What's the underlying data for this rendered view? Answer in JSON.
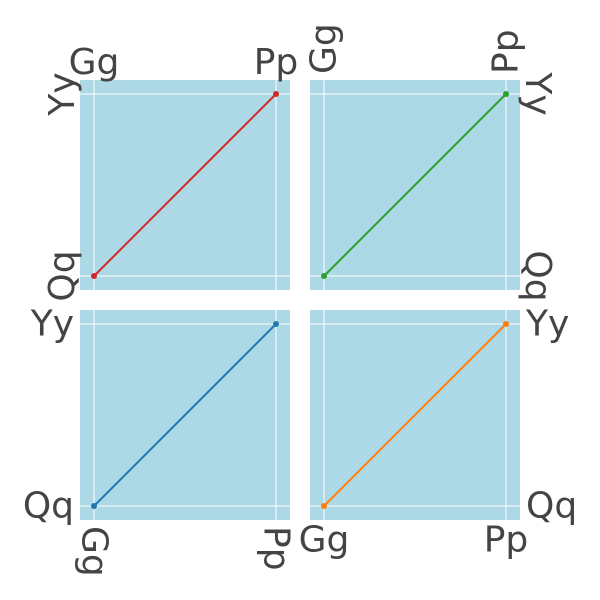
{
  "chart_data": [
    {
      "type": "line",
      "x_categories": [
        "Gg",
        "Pp"
      ],
      "y_categories": [
        "Qq",
        "Yy"
      ],
      "x": [
        "Gg",
        "Pp"
      ],
      "y": [
        "Qq",
        "Yy"
      ],
      "color": "#d62728",
      "xaxis_side": "top",
      "yaxis_side": "left",
      "x_tick_angle": 0,
      "y_tick_angle": -90,
      "grid": true
    },
    {
      "type": "line",
      "x_categories": [
        "Gg",
        "Pp"
      ],
      "y_categories": [
        "Qq",
        "Yy"
      ],
      "x": [
        "Gg",
        "Pp"
      ],
      "y": [
        "Qq",
        "Yy"
      ],
      "color": "#2ca02c",
      "xaxis_side": "top",
      "yaxis_side": "right",
      "x_tick_angle": -90,
      "y_tick_angle": 90,
      "grid": true
    },
    {
      "type": "line",
      "x_categories": [
        "Gg",
        "Pp"
      ],
      "y_categories": [
        "Qq",
        "Yy"
      ],
      "x": [
        "Gg",
        "Pp"
      ],
      "y": [
        "Qq",
        "Yy"
      ],
      "color": "#1f77b4",
      "xaxis_side": "bottom",
      "yaxis_side": "left",
      "x_tick_angle": 90,
      "y_tick_angle": 0,
      "grid": true
    },
    {
      "type": "line",
      "x_categories": [
        "Gg",
        "Pp"
      ],
      "y_categories": [
        "Qq",
        "Yy"
      ],
      "x": [
        "Gg",
        "Pp"
      ],
      "y": [
        "Qq",
        "Yy"
      ],
      "color": "#ff7f0e",
      "xaxis_side": "bottom",
      "yaxis_side": "right",
      "x_tick_angle": 0,
      "y_tick_angle": 0,
      "grid": true
    }
  ],
  "colors": {
    "plot_background": "#add8e6",
    "gridline": "#ffffff",
    "tick_text": "#444444"
  }
}
